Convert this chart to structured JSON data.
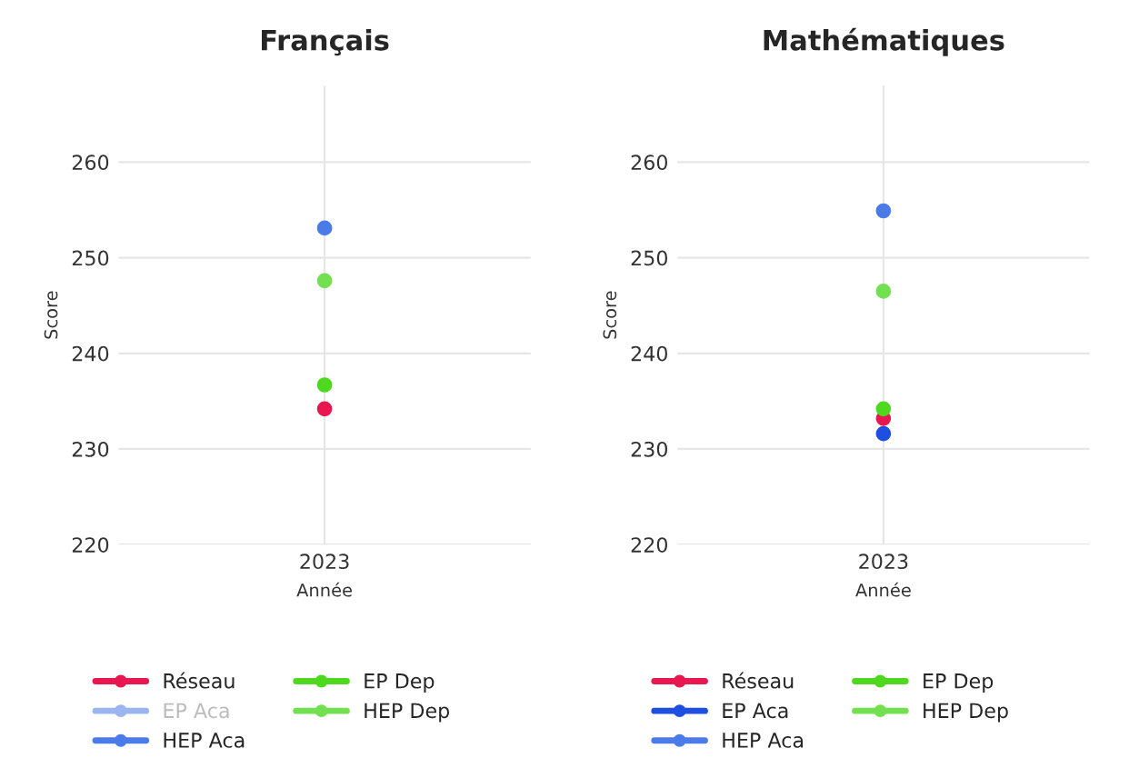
{
  "chart_data": [
    {
      "type": "line",
      "title": "Français",
      "xlabel": "Année",
      "ylabel": "Score",
      "categories": [
        "2023"
      ],
      "ylim": [
        220,
        268
      ],
      "yticks": [
        220,
        230,
        240,
        250,
        260
      ],
      "grid": true,
      "legend": "bottom",
      "marker": "circle",
      "series": [
        {
          "name": "Réseau",
          "color": "#e8174f",
          "values": [
            234.2
          ]
        },
        {
          "name": "EP Aca",
          "color": "#9bb5f0",
          "values": [
            null
          ]
        },
        {
          "name": "HEP Aca",
          "color": "#4a7be8",
          "values": [
            253.1
          ]
        },
        {
          "name": "EP Dep",
          "color": "#4ed81e",
          "values": [
            236.7
          ]
        },
        {
          "name": "HEP Dep",
          "color": "#72e050",
          "values": [
            247.6
          ]
        }
      ]
    },
    {
      "type": "line",
      "title": "Mathématiques",
      "xlabel": "Année",
      "ylabel": "Score",
      "categories": [
        "2023"
      ],
      "ylim": [
        220,
        268
      ],
      "yticks": [
        220,
        230,
        240,
        250,
        260
      ],
      "grid": true,
      "legend": "bottom",
      "marker": "circle",
      "series": [
        {
          "name": "Réseau",
          "color": "#e8174f",
          "values": [
            233.2
          ]
        },
        {
          "name": "EP Aca",
          "color": "#1f4fe0",
          "values": [
            231.6
          ]
        },
        {
          "name": "HEP Aca",
          "color": "#4a7be8",
          "values": [
            254.9
          ]
        },
        {
          "name": "EP Dep",
          "color": "#4ed81e",
          "values": [
            234.2
          ]
        },
        {
          "name": "HEP Dep",
          "color": "#72e050",
          "values": [
            246.5
          ]
        }
      ]
    }
  ]
}
